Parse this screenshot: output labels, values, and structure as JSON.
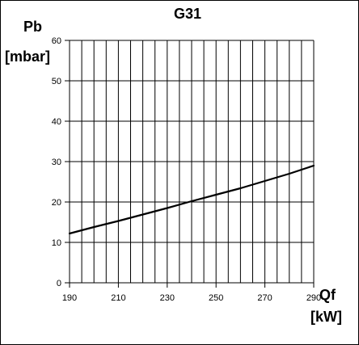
{
  "chart_data": {
    "type": "line",
    "title": "G31",
    "ylabel": "Pb",
    "ylabel_unit": "[mbar]",
    "xlabel": "Qf",
    "xlabel_unit": "[kW]",
    "xlim": [
      190,
      290
    ],
    "ylim": [
      0,
      60
    ],
    "xticks": [
      "190",
      "210",
      "230",
      "250",
      "270",
      "290"
    ],
    "yticks": [
      "0",
      "10",
      "20",
      "30",
      "40",
      "50",
      "60"
    ],
    "grid": true,
    "series": [
      {
        "x": [
          190,
          200,
          210,
          220,
          230,
          240,
          250,
          260,
          270,
          280,
          290
        ],
        "y": [
          12.2,
          13.8,
          15.3,
          16.9,
          18.5,
          20.2,
          21.8,
          23.4,
          25.2,
          27.0,
          29.0
        ]
      }
    ]
  }
}
